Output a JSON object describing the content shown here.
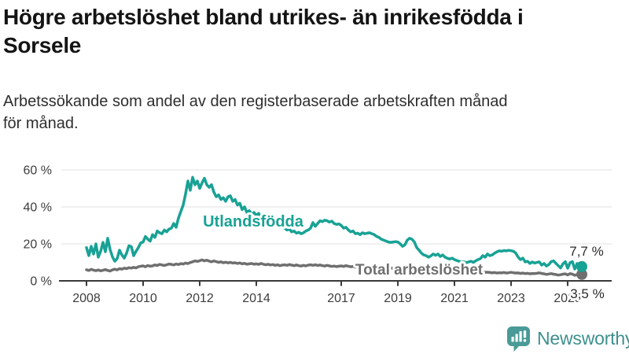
{
  "header": {
    "title_line1": "Högre arbetslöshet bland utrikes- än inrikesfödda i",
    "title_line2": "Sorsele",
    "subtitle_line1": "Arbetssökande som andel av den registerbaserade arbetskraften månad",
    "subtitle_line2": "för månad."
  },
  "footer": {
    "brand": "Newsworthy",
    "logo_icon": "newsworthy-speech-bubble-bar-chart-icon"
  },
  "colors": {
    "foreign_series": "#18a295",
    "total_series": "#6f6f6f",
    "grid": "#e0e0e0",
    "axis": "#3a3a3a",
    "tick_text": "#3d3d3d",
    "end_label_text": "#2b2b2b",
    "brand_teal": "#3e908d",
    "logo_bubble": "#4a9a97"
  },
  "chart_data": {
    "type": "line",
    "title": "Högre arbetslöshet bland utrikes- än inrikesfödda i Sorsele",
    "subtitle": "Arbetssökande som andel av den registerbaserade arbetskraften månad för månad.",
    "unit": "%",
    "x_start_year": 2008.0,
    "x_step_months": 1,
    "x_end_label_period": "mitten av 2025",
    "grid": true,
    "legend_position": "inline-labels",
    "ylim": [
      0,
      63
    ],
    "y_ticks": [
      {
        "value": 0,
        "label": "0 %"
      },
      {
        "value": 20,
        "label": "20 %"
      },
      {
        "value": 40,
        "label": "40 %"
      },
      {
        "value": 60,
        "label": "60 %"
      }
    ],
    "x_ticks": [
      {
        "year": 2008,
        "label": "2008"
      },
      {
        "year": 2010,
        "label": "2010"
      },
      {
        "year": 2012,
        "label": "2012"
      },
      {
        "year": 2014,
        "label": "2014"
      },
      {
        "year": 2017,
        "label": "2017"
      },
      {
        "year": 2019,
        "label": "2019"
      },
      {
        "year": 2021,
        "label": "2021"
      },
      {
        "year": 2023,
        "label": "2023"
      },
      {
        "year": 2025,
        "label": "2025"
      }
    ],
    "series": [
      {
        "name": "Total arbetslöshet",
        "color": "#6f6f6f",
        "end_label": "3,5 %",
        "end_value": 3.5,
        "values": [
          6,
          5.6,
          6.2,
          5.8,
          5.5,
          5.9,
          5.4,
          5.7,
          6.1,
          5.6,
          5.3,
          5.9,
          6.3,
          5.9,
          6.6,
          6.3,
          6.9,
          6.6,
          7.1,
          6.9,
          7.3,
          7,
          7.6,
          7.9,
          8.1,
          7.6,
          8.3,
          7.9,
          8.1,
          8.6,
          8.3,
          8.9,
          8.6,
          8.3,
          8.7,
          9.1,
          8.9,
          8.6,
          9.1,
          8.8,
          9.3,
          9.1,
          9.6,
          9.3,
          9.9,
          10.3,
          10.8,
          10.5,
          10.9,
          11.3,
          10.8,
          11.2,
          10.7,
          10.3,
          10.8,
          10.4,
          10,
          10.3,
          9.8,
          10.1,
          9.7,
          10,
          9.6,
          9.8,
          9.4,
          9.7,
          9.2,
          9.5,
          9,
          9.2,
          9.4,
          9,
          9.2,
          8.9,
          9.4,
          9,
          8.7,
          9,
          8.6,
          8.8,
          8.4,
          8.7,
          8.2,
          8.5,
          8.7,
          8.4,
          8.8,
          8.5,
          8.2,
          8.6,
          8.2,
          8,
          8.4,
          8.1,
          8.5,
          8.7,
          8.4,
          8.7,
          8.3,
          8.6,
          8.2,
          8,
          8.4,
          8.1,
          7.8,
          8,
          7.7,
          7.9,
          8.1,
          7.8,
          8.2,
          7.9,
          7.6,
          7.8,
          7.4,
          7.7,
          7.3,
          7.5,
          7.2,
          7.4,
          7.6,
          7.3,
          7.7,
          7.4,
          7.1,
          7.3,
          7,
          7.2,
          6.8,
          7,
          6.7,
          6.9,
          7.1,
          6.8,
          7.2,
          6.9,
          6.7,
          7,
          7.2,
          7.4,
          7.1,
          6.8,
          6.5,
          6.2,
          6.4,
          6.2,
          6.7,
          7.2,
          7.6,
          7.4,
          7.1,
          7.3,
          7,
          6.7,
          6.5,
          6.3,
          6,
          5.8,
          5.5,
          5.3,
          5.1,
          5.2,
          4.9,
          5.1,
          4.8,
          5,
          4.7,
          4.9,
          4.8,
          4.6,
          4.7,
          4.5,
          4.3,
          4.5,
          4.2,
          4.4,
          4.3,
          4.5,
          4.2,
          4.4,
          4.6,
          4.4,
          4.2,
          4.3,
          4,
          4.2,
          3.9,
          4.1,
          3.8,
          4,
          3.9,
          4.1,
          4.3,
          4,
          3.8,
          3.5,
          3.7,
          3.9,
          3.6,
          3.4,
          3.1,
          3.3,
          3.6,
          3.8,
          3.2,
          3.9,
          3.6,
          3,
          3.4,
          3.2,
          3.5
        ]
      },
      {
        "name": "Utlandsfödda",
        "color": "#18a295",
        "end_label": "7,7 %",
        "end_value": 7.7,
        "values": [
          18,
          13.6,
          18.7,
          14.5,
          20,
          12.8,
          16,
          20.8,
          15.7,
          23,
          17,
          13,
          10.6,
          12,
          16.6,
          14,
          12.3,
          15,
          19,
          18.5,
          13.6,
          16,
          18,
          20.5,
          21,
          24,
          22.5,
          21.5,
          25,
          23.5,
          27,
          26,
          25.5,
          27.5,
          26.5,
          28,
          28.5,
          31,
          29,
          34,
          37.5,
          41,
          47,
          54,
          49,
          56,
          52,
          54,
          50,
          53,
          55.5,
          52,
          50.6,
          52,
          48,
          45.5,
          46.5,
          44,
          45,
          43,
          45.5,
          46,
          43,
          44,
          41,
          42,
          38.5,
          40,
          37,
          38,
          36,
          37,
          35.5,
          36.5,
          34,
          33,
          33.8,
          32,
          31,
          31.8,
          30,
          29.5,
          28.8,
          29.3,
          28.5,
          27.5,
          28,
          26.5,
          27,
          25.8,
          26.3,
          25.5,
          26,
          27,
          27.5,
          28.5,
          31.5,
          29.5,
          31,
          32.5,
          32,
          32.8,
          32.5,
          31.8,
          32.3,
          31,
          30.5,
          30.8,
          30,
          28.5,
          29,
          27.5,
          26.5,
          27,
          25.5,
          25.8,
          25,
          26,
          25.5,
          25.8,
          26,
          25.5,
          25,
          24,
          23.5,
          22.5,
          22,
          21.5,
          21,
          20.8,
          21,
          21.2,
          21,
          20,
          18.7,
          19.5,
          22,
          23,
          22.5,
          21,
          18,
          16.6,
          15,
          14,
          13.6,
          12.8,
          13.5,
          14.5,
          13.8,
          14.5,
          13.2,
          14,
          12.8,
          12.2,
          11.8,
          12.3,
          11.5,
          11,
          10.5,
          10,
          10.3,
          9.8,
          10.2,
          10.6,
          10,
          10.8,
          11.5,
          12,
          13.6,
          12.8,
          14.5,
          13.6,
          14,
          15,
          15.7,
          16.2,
          16,
          16.4,
          16.2,
          16.5,
          16.3,
          16,
          15,
          12.8,
          11.5,
          12.3,
          10.2,
          10.6,
          9.4,
          10.2,
          9.6,
          10,
          10.2,
          8.5,
          9.4,
          8,
          8.8,
          10.4,
          10.8,
          9.5,
          8.2,
          7,
          9.2,
          10.4,
          6.8,
          9.8,
          10.4,
          6.4,
          9.4,
          8.2,
          7.7
        ]
      }
    ]
  }
}
